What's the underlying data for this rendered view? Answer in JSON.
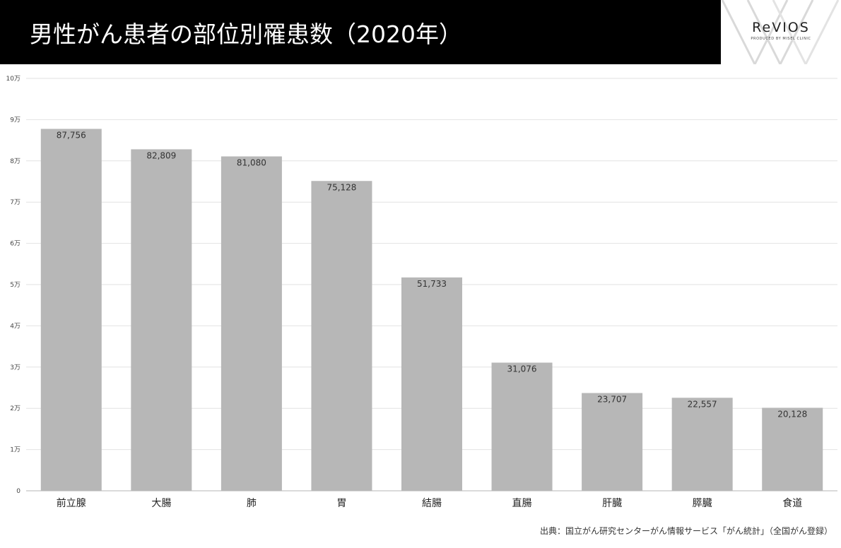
{
  "header": {
    "title": "男性がん患者の部位別罹患数（2020年）"
  },
  "logo": {
    "name": "ReVIOS",
    "tagline": "PRODUCED BY MISEL CLINIC"
  },
  "source": "出典：国立がん研究センターがん情報サービス「がん統計」（全国がん登録）",
  "colors": {
    "bar": "#b7b7b7",
    "grid": "#e2e2e2",
    "header_bg": "#000000"
  },
  "chart_data": {
    "type": "bar",
    "title": "",
    "xlabel": "",
    "ylabel": "",
    "ylim": [
      0,
      100000
    ],
    "grid": true,
    "categories": [
      "前立腺",
      "大腸",
      "肺",
      "胃",
      "結腸",
      "直腸",
      "肝臓",
      "膵臓",
      "食道"
    ],
    "values": [
      87756,
      82809,
      81080,
      75128,
      51733,
      31076,
      23707,
      22557,
      20128
    ],
    "value_labels": [
      "87,756",
      "82,809",
      "81,080",
      "75,128",
      "51,733",
      "31,076",
      "23,707",
      "22,557",
      "20,128"
    ],
    "y_ticks": [
      0,
      10000,
      20000,
      30000,
      40000,
      50000,
      60000,
      70000,
      80000,
      90000,
      100000
    ],
    "y_tick_labels": [
      "0",
      "1万",
      "2万",
      "3万",
      "4万",
      "5万",
      "6万",
      "7万",
      "8万",
      "9万",
      "10万"
    ]
  }
}
